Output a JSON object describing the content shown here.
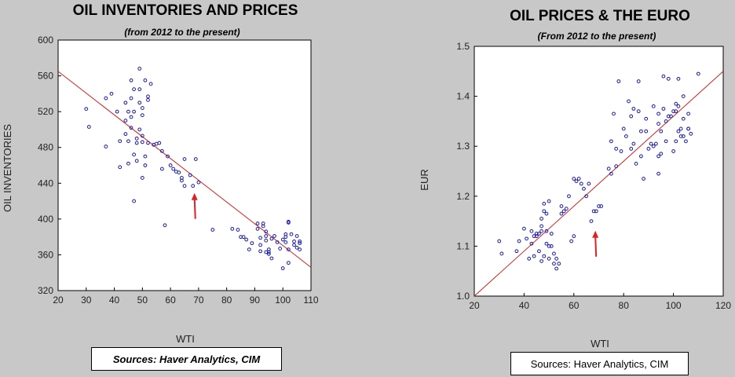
{
  "chart_data": [
    {
      "type": "scatter",
      "title": "OIL INVENTORIES AND PRICES",
      "subtitle": "(from 2012 to the present)",
      "xlabel": "WTI",
      "ylabel": "OIL INVENTORIES",
      "xlim": [
        20,
        110
      ],
      "ylim": [
        320,
        600
      ],
      "xticks": [
        20,
        30,
        40,
        50,
        60,
        70,
        80,
        90,
        100,
        110
      ],
      "yticks": [
        320,
        360,
        400,
        440,
        480,
        520,
        560,
        600
      ],
      "source": "Sources:  Haver Analytics, CIM",
      "trend_line": {
        "x": [
          20,
          110
        ],
        "y": [
          565,
          346
        ]
      },
      "current_marker": {
        "x": 68,
        "y": 437
      },
      "points": [
        [
          30,
          523
        ],
        [
          31,
          503
        ],
        [
          37,
          481
        ],
        [
          37,
          535
        ],
        [
          39,
          540
        ],
        [
          41,
          520
        ],
        [
          42,
          487
        ],
        [
          42,
          458
        ],
        [
          44,
          510
        ],
        [
          44,
          495
        ],
        [
          44,
          530
        ],
        [
          45,
          520
        ],
        [
          45,
          487
        ],
        [
          45,
          462
        ],
        [
          46,
          502
        ],
        [
          46,
          514
        ],
        [
          46,
          535
        ],
        [
          46,
          555
        ],
        [
          47,
          545
        ],
        [
          47,
          520
        ],
        [
          47,
          420
        ],
        [
          47,
          472
        ],
        [
          48,
          490
        ],
        [
          48,
          485
        ],
        [
          48,
          465
        ],
        [
          49,
          568
        ],
        [
          49,
          545
        ],
        [
          49,
          530
        ],
        [
          49,
          500
        ],
        [
          50,
          493
        ],
        [
          50,
          516
        ],
        [
          50,
          524
        ],
        [
          50,
          486
        ],
        [
          50,
          446
        ],
        [
          51,
          460
        ],
        [
          51,
          555
        ],
        [
          51,
          470
        ],
        [
          52,
          485
        ],
        [
          52,
          533
        ],
        [
          52,
          537
        ],
        [
          53,
          551
        ],
        [
          54,
          483
        ],
        [
          55,
          484
        ],
        [
          56,
          485
        ],
        [
          57,
          476
        ],
        [
          57,
          456
        ],
        [
          58,
          393
        ],
        [
          59,
          470
        ],
        [
          60,
          460
        ],
        [
          61,
          456
        ],
        [
          62,
          453
        ],
        [
          63,
          452
        ],
        [
          64,
          446
        ],
        [
          64,
          443
        ],
        [
          65,
          467
        ],
        [
          65,
          437
        ],
        [
          67,
          449
        ],
        [
          68,
          437
        ],
        [
          69,
          467
        ],
        [
          70,
          441
        ],
        [
          75,
          388
        ],
        [
          82,
          389
        ],
        [
          84,
          388
        ],
        [
          85,
          380
        ],
        [
          86,
          380
        ],
        [
          87,
          377
        ],
        [
          88,
          366
        ],
        [
          89,
          373
        ],
        [
          91,
          395
        ],
        [
          91,
          389
        ],
        [
          92,
          379
        ],
        [
          92,
          371
        ],
        [
          92,
          364
        ],
        [
          93,
          392
        ],
        [
          93,
          395
        ],
        [
          94,
          386
        ],
        [
          94,
          381
        ],
        [
          94,
          376
        ],
        [
          94,
          363
        ],
        [
          95,
          363
        ],
        [
          95,
          366
        ],
        [
          95,
          361
        ],
        [
          96,
          356
        ],
        [
          96,
          378
        ],
        [
          97,
          381
        ],
        [
          98,
          374
        ],
        [
          99,
          367
        ],
        [
          100,
          345
        ],
        [
          100,
          377
        ],
        [
          101,
          380
        ],
        [
          101,
          383
        ],
        [
          101,
          374
        ],
        [
          102,
          351
        ],
        [
          102,
          396
        ],
        [
          102,
          397
        ],
        [
          102,
          366
        ],
        [
          103,
          383
        ],
        [
          104,
          371
        ],
        [
          104,
          375
        ],
        [
          105,
          368
        ],
        [
          105,
          381
        ],
        [
          106,
          375
        ],
        [
          106,
          366
        ],
        [
          106,
          373
        ]
      ]
    },
    {
      "type": "scatter",
      "title": "OIL PRICES & THE EURO",
      "subtitle": "(From 2012 to the present)",
      "xlabel": "WTI",
      "ylabel": "EUR",
      "xlim": [
        20,
        120
      ],
      "ylim": [
        1.0,
        1.5
      ],
      "xticks": [
        20,
        40,
        60,
        80,
        100,
        120
      ],
      "yticks": [
        1.0,
        1.1,
        1.2,
        1.3,
        1.4,
        1.5
      ],
      "source": "Sources:  Haver Analytics, CIM",
      "trend_line": {
        "x": [
          20,
          120
        ],
        "y": [
          1.0,
          1.45
        ]
      },
      "current_marker": {
        "x": 68,
        "y": 1.145
      },
      "points": [
        [
          30,
          1.11
        ],
        [
          31,
          1.085
        ],
        [
          37,
          1.09
        ],
        [
          38,
          1.11
        ],
        [
          40,
          1.135
        ],
        [
          41,
          1.115
        ],
        [
          42,
          1.075
        ],
        [
          43,
          1.105
        ],
        [
          43,
          1.13
        ],
        [
          44,
          1.12
        ],
        [
          44,
          1.08
        ],
        [
          45,
          1.125
        ],
        [
          45,
          1.12
        ],
        [
          46,
          1.09
        ],
        [
          46,
          1.125
        ],
        [
          47,
          1.07
        ],
        [
          47,
          1.13
        ],
        [
          47,
          1.155
        ],
        [
          47,
          1.14
        ],
        [
          48,
          1.08
        ],
        [
          48,
          1.17
        ],
        [
          48,
          1.185
        ],
        [
          49,
          1.105
        ],
        [
          49,
          1.13
        ],
        [
          49,
          1.165
        ],
        [
          50,
          1.1
        ],
        [
          50,
          1.075
        ],
        [
          50,
          1.19
        ],
        [
          51,
          1.1
        ],
        [
          51,
          1.125
        ],
        [
          52,
          1.085
        ],
        [
          52,
          1.065
        ],
        [
          53,
          1.055
        ],
        [
          53,
          1.075
        ],
        [
          54,
          1.065
        ],
        [
          55,
          1.18
        ],
        [
          55,
          1.165
        ],
        [
          56,
          1.17
        ],
        [
          57,
          1.175
        ],
        [
          58,
          1.2
        ],
        [
          59,
          1.11
        ],
        [
          60,
          1.12
        ],
        [
          60,
          1.235
        ],
        [
          61,
          1.23
        ],
        [
          62,
          1.235
        ],
        [
          63,
          1.225
        ],
        [
          64,
          1.215
        ],
        [
          65,
          1.2
        ],
        [
          66,
          1.225
        ],
        [
          67,
          1.15
        ],
        [
          68,
          1.17
        ],
        [
          69,
          1.17
        ],
        [
          70,
          1.18
        ],
        [
          71,
          1.18
        ],
        [
          74,
          1.255
        ],
        [
          75,
          1.31
        ],
        [
          75,
          1.245
        ],
        [
          76,
          1.365
        ],
        [
          77,
          1.26
        ],
        [
          77,
          1.295
        ],
        [
          78,
          1.43
        ],
        [
          79,
          1.29
        ],
        [
          80,
          1.335
        ],
        [
          81,
          1.32
        ],
        [
          82,
          1.39
        ],
        [
          83,
          1.36
        ],
        [
          83,
          1.295
        ],
        [
          84,
          1.375
        ],
        [
          84,
          1.305
        ],
        [
          85,
          1.265
        ],
        [
          86,
          1.43
        ],
        [
          86,
          1.37
        ],
        [
          87,
          1.33
        ],
        [
          87,
          1.28
        ],
        [
          88,
          1.235
        ],
        [
          89,
          1.355
        ],
        [
          89,
          1.33
        ],
        [
          90,
          1.295
        ],
        [
          91,
          1.305
        ],
        [
          92,
          1.38
        ],
        [
          92,
          1.3
        ],
        [
          93,
          1.305
        ],
        [
          94,
          1.245
        ],
        [
          94,
          1.28
        ],
        [
          94,
          1.345
        ],
        [
          94,
          1.365
        ],
        [
          95,
          1.285
        ],
        [
          95,
          1.33
        ],
        [
          96,
          1.44
        ],
        [
          96,
          1.375
        ],
        [
          97,
          1.35
        ],
        [
          97,
          1.31
        ],
        [
          98,
          1.435
        ],
        [
          98,
          1.36
        ],
        [
          99,
          1.36
        ],
        [
          100,
          1.37
        ],
        [
          100,
          1.29
        ],
        [
          101,
          1.31
        ],
        [
          101,
          1.385
        ],
        [
          101,
          1.37
        ],
        [
          102,
          1.435
        ],
        [
          102,
          1.38
        ],
        [
          102,
          1.33
        ],
        [
          103,
          1.335
        ],
        [
          103,
          1.32
        ],
        [
          104,
          1.4
        ],
        [
          104,
          1.355
        ],
        [
          104,
          1.32
        ],
        [
          105,
          1.31
        ],
        [
          106,
          1.335
        ],
        [
          106,
          1.365
        ],
        [
          106,
          1.335
        ],
        [
          107,
          1.325
        ],
        [
          110,
          1.445
        ]
      ]
    }
  ]
}
